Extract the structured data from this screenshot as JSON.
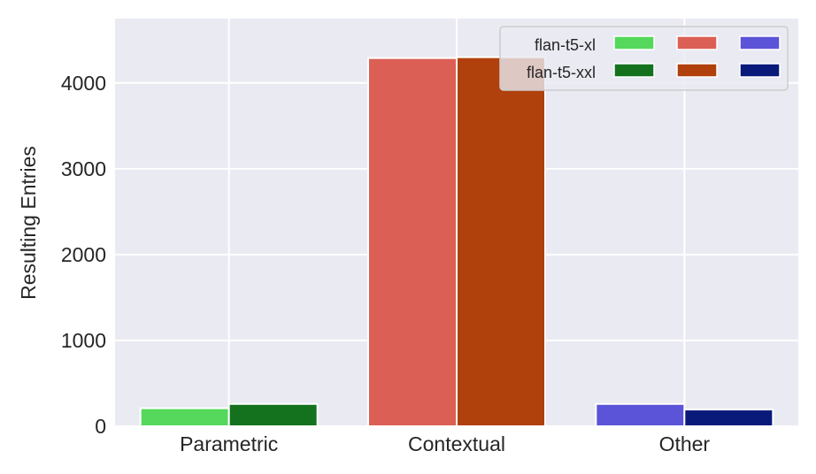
{
  "chart_data": {
    "type": "bar",
    "categories": [
      "Parametric",
      "Contextual",
      "Other"
    ],
    "series": [
      {
        "name": "flan-t5-xl",
        "values": [
          210,
          4290,
          260
        ],
        "colors": [
          "#55d85c",
          "#dc5f55",
          "#5b54d8"
        ]
      },
      {
        "name": "flan-t5-xxl",
        "values": [
          260,
          4300,
          195
        ],
        "colors": [
          "#14721f",
          "#b0400c",
          "#0a1a7a"
        ]
      }
    ],
    "title": "",
    "xlabel": "",
    "ylabel": "Resulting Entries",
    "ylim": [
      0,
      4750
    ],
    "yticks": [
      0,
      1000,
      2000,
      3000,
      4000
    ],
    "yticks_labels": [
      "0",
      "1000",
      "2000",
      "3000",
      "4000"
    ],
    "grid": true,
    "legend_position": "top-right",
    "background": "#eaeaf2"
  }
}
